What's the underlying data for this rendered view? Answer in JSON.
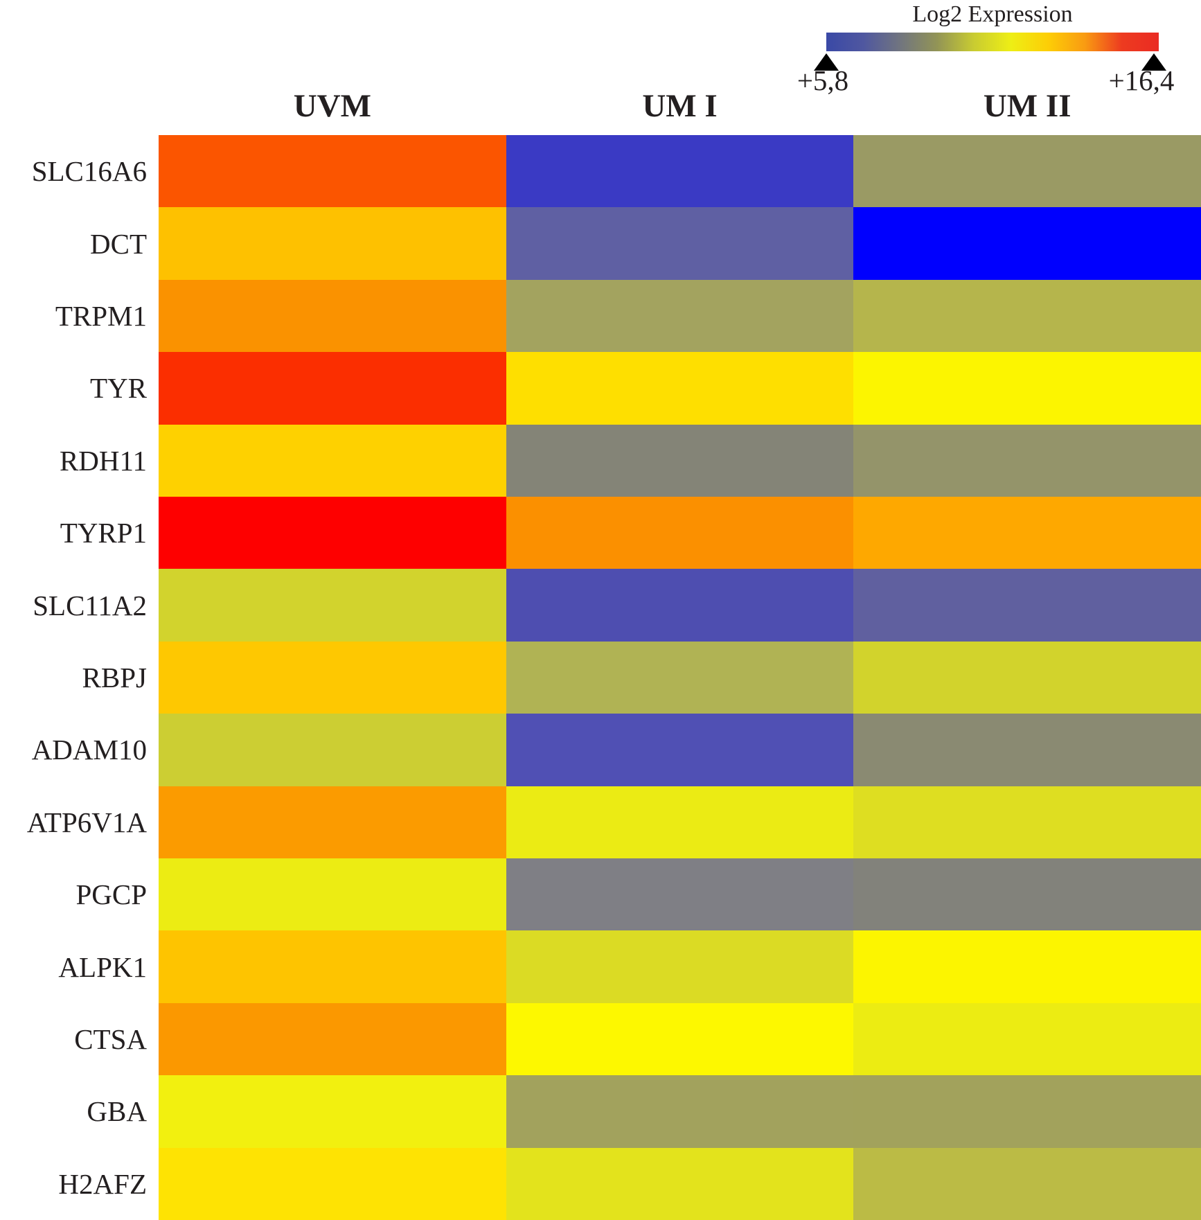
{
  "figure": {
    "background": "#ffffff"
  },
  "legend": {
    "title": "Log2 Expression",
    "min_label": "+5,8",
    "max_label": "+16,4",
    "gradient_stops": [
      "#3A49A6",
      "#4F57A0",
      "#71757F",
      "#929456",
      "#C9CC31",
      "#EEEE15",
      "#FDCE06",
      "#F99B12",
      "#ED3B20",
      "#EA2B23"
    ]
  },
  "chart_data": {
    "type": "heatmap",
    "title": "Log2 Expression",
    "legend_position": "top-right",
    "columns": [
      "UVM",
      "UM I",
      "UM II"
    ],
    "rows": [
      "SLC16A6",
      "DCT",
      "TRPM1",
      "TYR",
      "RDH11",
      "TYRP1",
      "SLC11A2",
      "RBPJ",
      "ADAM10",
      "ATP6V1A",
      "PGCP",
      "ALPK1",
      "CTSA",
      "GBA",
      "H2AFZ"
    ],
    "colorscale": {
      "min_value": 5.8,
      "max_value": 16.4,
      "min_label": "+5,8",
      "max_label": "+16,4",
      "stops": [
        "#3A49A6",
        "#71757F",
        "#C9CC31",
        "#EEEE15",
        "#FDCE06",
        "#F99B12",
        "#EA2B23"
      ]
    },
    "cells_hex": [
      [
        "#FB5500",
        "#3A3AC4",
        "#9A9A64"
      ],
      [
        "#FEC100",
        "#5F60A3",
        "#0000FE"
      ],
      [
        "#FA9200",
        "#A3A35F",
        "#B5B54C"
      ],
      [
        "#FB2E00",
        "#FEDF00",
        "#FCF500"
      ],
      [
        "#FED100",
        "#848477",
        "#94946A"
      ],
      [
        "#FE0000",
        "#FB9000",
        "#FEA800"
      ],
      [
        "#D2D32D",
        "#4E4EB0",
        "#60609F"
      ],
      [
        "#FEC801",
        "#B0B354",
        "#D2D32C"
      ],
      [
        "#CCCE33",
        "#5050B4",
        "#8A8A72"
      ],
      [
        "#FB9B00",
        "#EBEB14",
        "#DEDE21"
      ],
      [
        "#ECEC13",
        "#7F7F85",
        "#82827B"
      ],
      [
        "#FEC400",
        "#DBDB24",
        "#FCF500"
      ],
      [
        "#FB9800",
        "#FDF800",
        "#ECEC12"
      ],
      [
        "#F2F00F",
        "#A2A25D",
        "#A2A25C"
      ],
      [
        "#FEE303",
        "#E3E31C",
        "#BBBB45"
      ]
    ],
    "values_estimated_log2": [
      [
        15.6,
        6.3,
        9.5
      ],
      [
        14.2,
        7.0,
        5.8
      ],
      [
        15.0,
        9.8,
        10.4
      ],
      [
        16.0,
        13.5,
        13.0
      ],
      [
        13.8,
        8.8,
        9.3
      ],
      [
        16.4,
        15.0,
        14.6
      ],
      [
        11.4,
        6.6,
        7.0
      ],
      [
        14.0,
        10.3,
        11.4
      ],
      [
        11.2,
        6.7,
        9.0
      ],
      [
        14.8,
        12.4,
        11.9
      ],
      [
        12.4,
        8.5,
        8.6
      ],
      [
        14.1,
        11.8,
        13.0
      ],
      [
        14.8,
        13.1,
        12.5
      ],
      [
        12.7,
        9.8,
        9.8
      ],
      [
        13.4,
        12.1,
        10.6
      ]
    ]
  }
}
